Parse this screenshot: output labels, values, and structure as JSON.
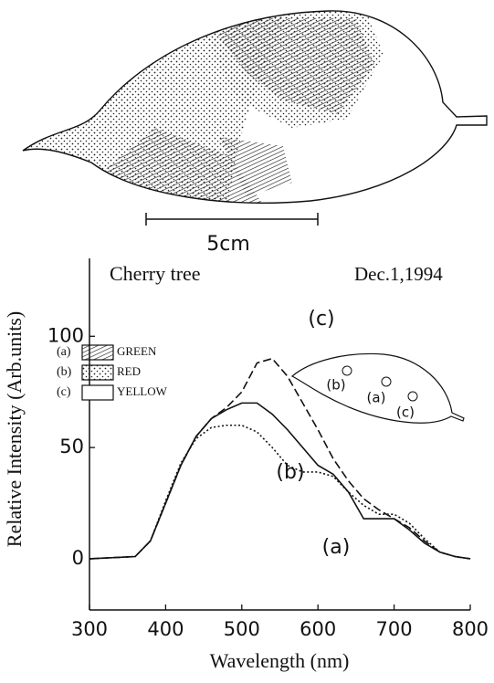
{
  "chart_data": {
    "type": "line",
    "title": "Cherry tree",
    "subtitle": "Dec.1,1994",
    "x_label": "Wavelength (nm)",
    "y_label": "Relative Intensity (Arb.units)",
    "scale_bar": "5cm",
    "inset_labels": [
      "(b)",
      "(a)",
      "(c)"
    ],
    "x": [
      300,
      360,
      380,
      400,
      420,
      440,
      460,
      480,
      500,
      520,
      540,
      560,
      580,
      600,
      620,
      640,
      660,
      680,
      700,
      720,
      740,
      760,
      780,
      800
    ],
    "series": [
      {
        "name": "GREEN",
        "label": "(a)",
        "line_style": "solid",
        "color": "#111111",
        "values": [
          0,
          1,
          8,
          25,
          42,
          55,
          63,
          67,
          70,
          70,
          65,
          58,
          50,
          42,
          38,
          30,
          18,
          18,
          18,
          13,
          7,
          3,
          1,
          0
        ]
      },
      {
        "name": "RED",
        "label": "(b)",
        "line_style": "dotted",
        "color": "#111111",
        "values": [
          0,
          1,
          8,
          26,
          43,
          54,
          59,
          60,
          60,
          57,
          50,
          42,
          39,
          39,
          37,
          30,
          24,
          20,
          20,
          16,
          9,
          3,
          1,
          0
        ]
      },
      {
        "name": "YELLOW",
        "label": "(c)",
        "line_style": "dashed",
        "color": "#111111",
        "values": [
          0,
          1,
          8,
          25,
          42,
          55,
          63,
          68,
          75,
          88,
          90,
          82,
          70,
          58,
          45,
          35,
          27,
          22,
          18,
          14,
          8,
          3,
          1,
          0
        ]
      }
    ],
    "xlim": [
      300,
      800
    ],
    "xticks": [
      300,
      400,
      500,
      600,
      700,
      800
    ],
    "ylim": [
      -23,
      135
    ],
    "yticks": [
      0,
      50,
      100
    ]
  }
}
